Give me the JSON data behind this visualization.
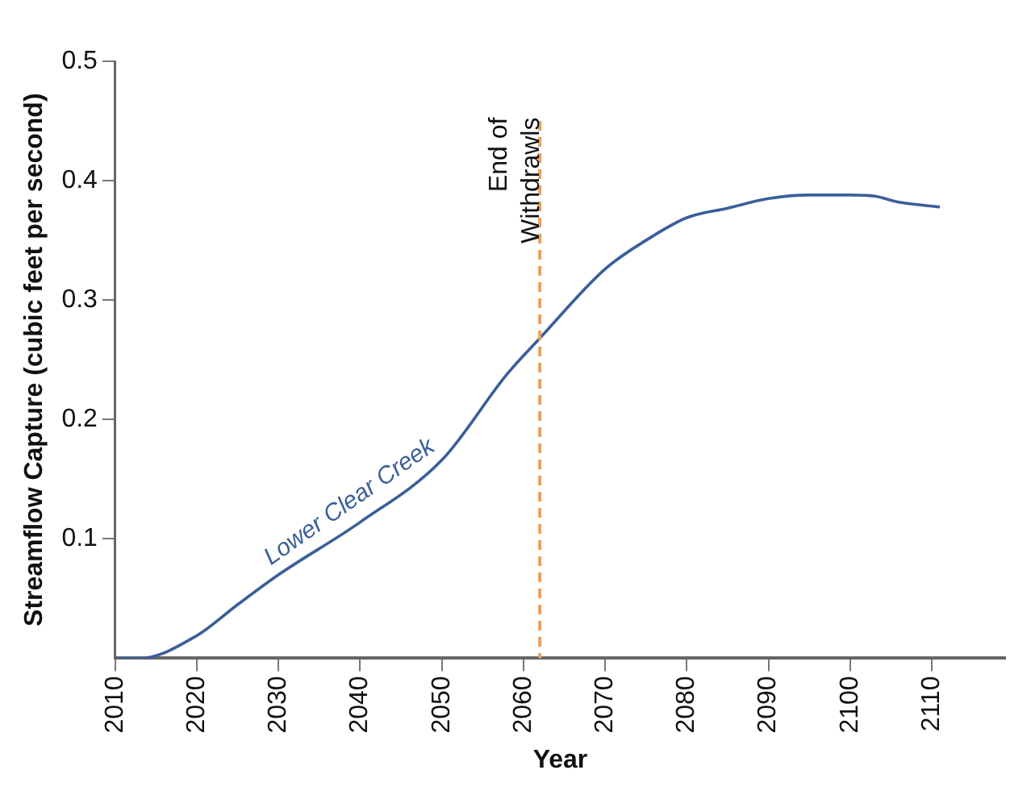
{
  "chart_data": {
    "type": "line",
    "xlabel": "Year",
    "ylabel": "Streamflow Capture (cubic feet per second)",
    "series": [
      {
        "name": "Lower Clear Creek",
        "color": "#3a5f9a",
        "x": [
          2010,
          2013,
          2020,
          2025,
          2030,
          2040,
          2050,
          2058,
          2062,
          2070,
          2075,
          2080,
          2085,
          2090,
          2095,
          2100,
          2103,
          2106,
          2111
        ],
        "values": [
          0,
          0,
          0.019,
          0.045,
          0.07,
          0.114,
          0.166,
          0.238,
          0.268,
          0.326,
          0.35,
          0.369,
          0.377,
          0.385,
          0.388,
          0.388,
          0.387,
          0.382,
          0.378
        ]
      }
    ],
    "xlim": [
      2010,
      2119
    ],
    "xticks": [
      2010,
      2020,
      2030,
      2040,
      2050,
      2060,
      2070,
      2080,
      2090,
      2100,
      2110
    ],
    "ylim": [
      0,
      0.5
    ],
    "yticks": [
      0.1,
      0.2,
      0.3,
      0.4,
      0.5
    ],
    "ref_lines": [
      {
        "axis": "x",
        "value": 2062,
        "label": "End of Withdrawls",
        "color": "#e8a060",
        "line_style": "dashed"
      }
    ],
    "grid": false,
    "legend": false,
    "marker": "none",
    "line_style": "solid"
  }
}
